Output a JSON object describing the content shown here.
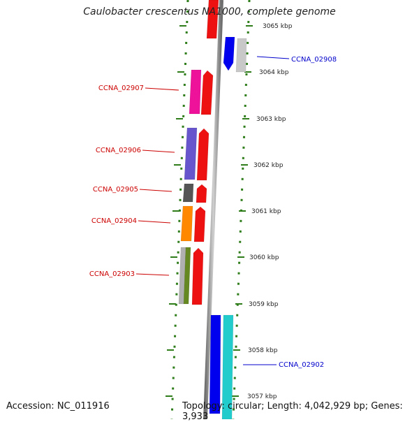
{
  "title": "Caulobacter crescentus NA1000, complete genome",
  "accession": "Accession: NC_011916",
  "summary": "Topology: circular; Length: 4,042,929 bp; Genes: 3,933",
  "colors": {
    "backbone": "#8a8a8a",
    "tick": "#2e7d1a",
    "minus_label": "#cc0000",
    "plus_label": "#0000cc"
  },
  "scale_labels": [
    "3065 kbp",
    "3064 kbp",
    "3063 kbp",
    "3062 kbp",
    "3061 kbp",
    "3060 kbp",
    "3059 kbp",
    "3058 kbp",
    "3057 kbp"
  ],
  "gene_labels": [
    {
      "name": "CCNA_02908",
      "strand": "plus"
    },
    {
      "name": "CCNA_02907",
      "strand": "minus"
    },
    {
      "name": "CCNA_02906",
      "strand": "minus"
    },
    {
      "name": "CCNA_02905",
      "strand": "minus"
    },
    {
      "name": "CCNA_02904",
      "strand": "minus"
    },
    {
      "name": "CCNA_02903",
      "strand": "minus"
    },
    {
      "name": "CCNA_02902",
      "strand": "plus"
    }
  ],
  "feature_colors": {
    "top_partial": "#ee1111",
    "f2908_a": "#0000ee",
    "f2908_b": "#c8c8c8",
    "f2907_a": "#ee1199",
    "f2907_b": "#ee1111",
    "f2906_a": "#6655cc",
    "f2906_b": "#ee1111",
    "f2905_a": "#555555",
    "f2905_b": "#ee1111",
    "f2904_a": "#ff8800",
    "f2904_b": "#ee1111",
    "f2903_a": "#b0b0b0",
    "f2903_b": "#668822",
    "f2903_c": "#ee1111",
    "f2902_a": "#0000ee",
    "f2902_b": "#22cccc"
  }
}
